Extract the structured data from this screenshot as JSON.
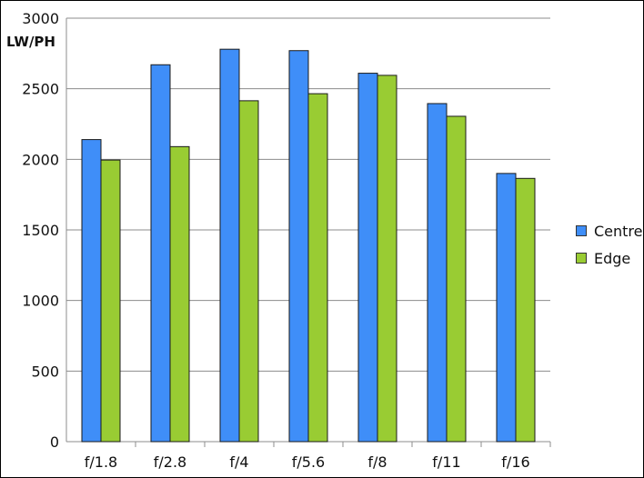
{
  "chart_data": {
    "type": "bar",
    "title": "",
    "xlabel": "",
    "ylabel": "LW/PH",
    "categories": [
      "f/1.8",
      "f/2.8",
      "f/4",
      "f/5.6",
      "f/8",
      "f/11",
      "f/16"
    ],
    "series": [
      {
        "name": "Centre",
        "color": "#3f8ef8",
        "values": [
          2140,
          2670,
          2780,
          2770,
          2610,
          2395,
          1900
        ]
      },
      {
        "name": "Edge",
        "color": "#99cc33",
        "values": [
          1995,
          2090,
          2415,
          2465,
          2595,
          2305,
          1865
        ]
      }
    ],
    "ylim": [
      0,
      3000
    ],
    "yticks": [
      "0",
      "500",
      "1000",
      "1500",
      "2000",
      "2500",
      "3000"
    ],
    "grid": true,
    "legend_position": "right"
  }
}
